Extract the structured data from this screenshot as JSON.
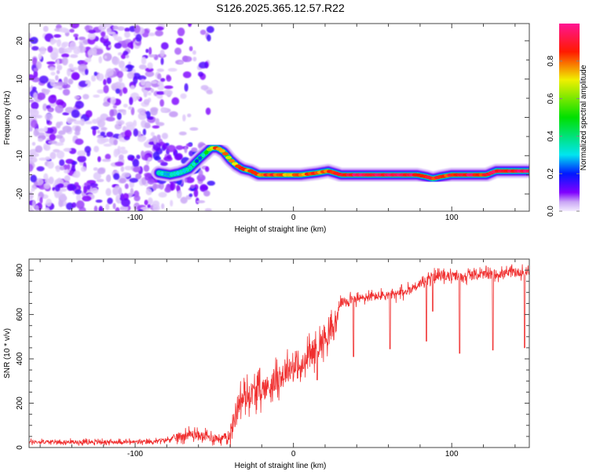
{
  "title": "S126.2025.365.12.57.R22",
  "chart_data": [
    {
      "type": "heatmap",
      "title": "S126.2025.365.12.57.R22",
      "xlabel": "Height of straight line (km)",
      "ylabel": "Frequency (Hz)",
      "xlim": [
        -167,
        149
      ],
      "ylim": [
        -24.5,
        24.5
      ],
      "x_ticks": [
        -100,
        0,
        100
      ],
      "y_ticks": [
        -20,
        -10,
        0,
        10,
        20
      ],
      "colorbar": {
        "label": "Normalized spectral amplitude",
        "range": [
          0,
          1
        ],
        "ticks": [
          0.0,
          0.2,
          0.4,
          0.6,
          0.8
        ],
        "tick_labels": [
          "0.0",
          "0.2",
          "0.4",
          "0.6",
          "0.8"
        ],
        "stops": [
          {
            "v": 0.0,
            "color": "#f4ecff"
          },
          {
            "v": 0.05,
            "color": "#c9a6f5"
          },
          {
            "v": 0.1,
            "color": "#8000ff"
          },
          {
            "v": 0.2,
            "color": "#0018ff"
          },
          {
            "v": 0.3,
            "color": "#00e5f0"
          },
          {
            "v": 0.5,
            "color": "#00e000"
          },
          {
            "v": 0.7,
            "color": "#f0f000"
          },
          {
            "v": 0.85,
            "color": "#ff1a00"
          },
          {
            "v": 1.0,
            "color": "#ff1493"
          }
        ]
      },
      "noise_region_x": [
        -167,
        -52
      ],
      "ridge": {
        "x": [
          -85,
          -78,
          -72,
          -66,
          -60,
          -56,
          -52,
          -48,
          -44,
          -40,
          -36,
          -32,
          -27,
          -22,
          -15,
          -5,
          5,
          15,
          22,
          30,
          45,
          60,
          78,
          84,
          88,
          93,
          100,
          115,
          122,
          128,
          140,
          149
        ],
        "freq": [
          -14.5,
          -15,
          -14.5,
          -13.5,
          -11,
          -9.5,
          -8,
          -8,
          -9,
          -11,
          -12.5,
          -13.5,
          -14,
          -15,
          -15,
          -15,
          -15,
          -14.5,
          -14,
          -15,
          -15,
          -15,
          -15,
          -15.5,
          -16,
          -15.5,
          -15,
          -15,
          -15,
          -14,
          -14,
          -14
        ],
        "amplitude": [
          0.3,
          0.3,
          0.3,
          0.3,
          0.25,
          0.45,
          0.7,
          0.8,
          0.75,
          0.7,
          0.75,
          0.85,
          0.8,
          0.8,
          0.85,
          0.8,
          0.8,
          0.8,
          0.85,
          0.9,
          0.95,
          0.95,
          0.9,
          0.85,
          0.9,
          0.8,
          0.9,
          0.9,
          0.85,
          0.9,
          0.95,
          0.95
        ]
      }
    },
    {
      "type": "line",
      "xlabel": "Height of straight line (km)",
      "ylabel": "SNR (10 * v/v)",
      "xlim": [
        -167,
        149
      ],
      "ylim": [
        0,
        850
      ],
      "x_ticks": [
        -100,
        0,
        100
      ],
      "y_ticks": [
        0,
        200,
        400,
        600,
        800
      ],
      "color": "#f03030",
      "series": [
        {
          "name": "SNR",
          "x": [
            -167,
            -120,
            -90,
            -80,
            -72,
            -65,
            -60,
            -52,
            -45,
            -40,
            -38,
            -35,
            -30,
            -25,
            -20,
            -15,
            -10,
            -5,
            0,
            5,
            10,
            15,
            20,
            25,
            27,
            29,
            35,
            45,
            55,
            65,
            70,
            75,
            80,
            88,
            95,
            105,
            115,
            125,
            135,
            149
          ],
          "y": [
            25,
            25,
            25,
            35,
            50,
            60,
            55,
            45,
            40,
            55,
            110,
            200,
            230,
            250,
            260,
            280,
            310,
            340,
            370,
            350,
            420,
            450,
            500,
            530,
            560,
            650,
            665,
            675,
            685,
            690,
            700,
            720,
            740,
            770,
            775,
            770,
            780,
            780,
            785,
            795
          ]
        }
      ],
      "dips": [
        {
          "x": 15,
          "y": 305
        },
        {
          "x": 38,
          "y": 410
        },
        {
          "x": 61,
          "y": 445
        },
        {
          "x": 84,
          "y": 480
        },
        {
          "x": 88,
          "y": 615
        },
        {
          "x": 105,
          "y": 425
        },
        {
          "x": 126,
          "y": 440
        },
        {
          "x": 146,
          "y": 450
        }
      ]
    }
  ]
}
